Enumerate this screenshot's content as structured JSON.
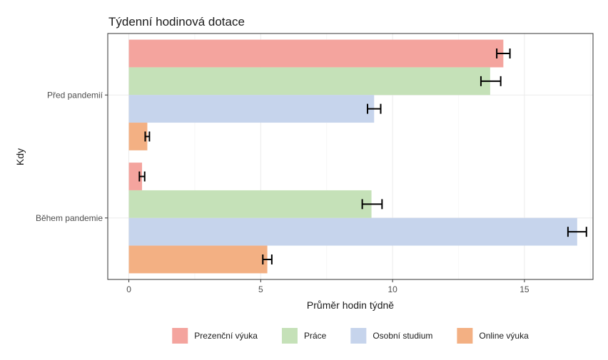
{
  "chart_data": {
    "type": "bar",
    "orientation": "horizontal",
    "title": "Týdenní hodinová dotace",
    "xlabel": "Průměr hodin týdně",
    "ylabel": "Kdy",
    "xlim": [
      -0.8,
      17.6
    ],
    "xticks": [
      0,
      5,
      10,
      15
    ],
    "grid": true,
    "legend_position": "bottom",
    "categories": [
      "Před pandemií",
      "Během pandemie"
    ],
    "series": [
      {
        "name": "Prezenční výuka",
        "color": "#F4A49E",
        "values": [
          14.2,
          0.5
        ],
        "err_low": [
          13.95,
          0.4
        ],
        "err_high": [
          14.45,
          0.6
        ]
      },
      {
        "name": "Práce",
        "color": "#C5E1B8",
        "values": [
          13.7,
          9.2
        ],
        "err_low": [
          13.35,
          8.85
        ],
        "err_high": [
          14.1,
          9.6
        ]
      },
      {
        "name": "Osobní studium",
        "color": "#C6D4EC",
        "values": [
          9.3,
          17.0
        ],
        "err_low": [
          9.05,
          16.65
        ],
        "err_high": [
          9.55,
          17.35
        ]
      },
      {
        "name": "Online výuka",
        "color": "#F3B083",
        "values": [
          0.7,
          5.25
        ],
        "err_low": [
          0.62,
          5.08
        ],
        "err_high": [
          0.78,
          5.42
        ]
      }
    ]
  }
}
